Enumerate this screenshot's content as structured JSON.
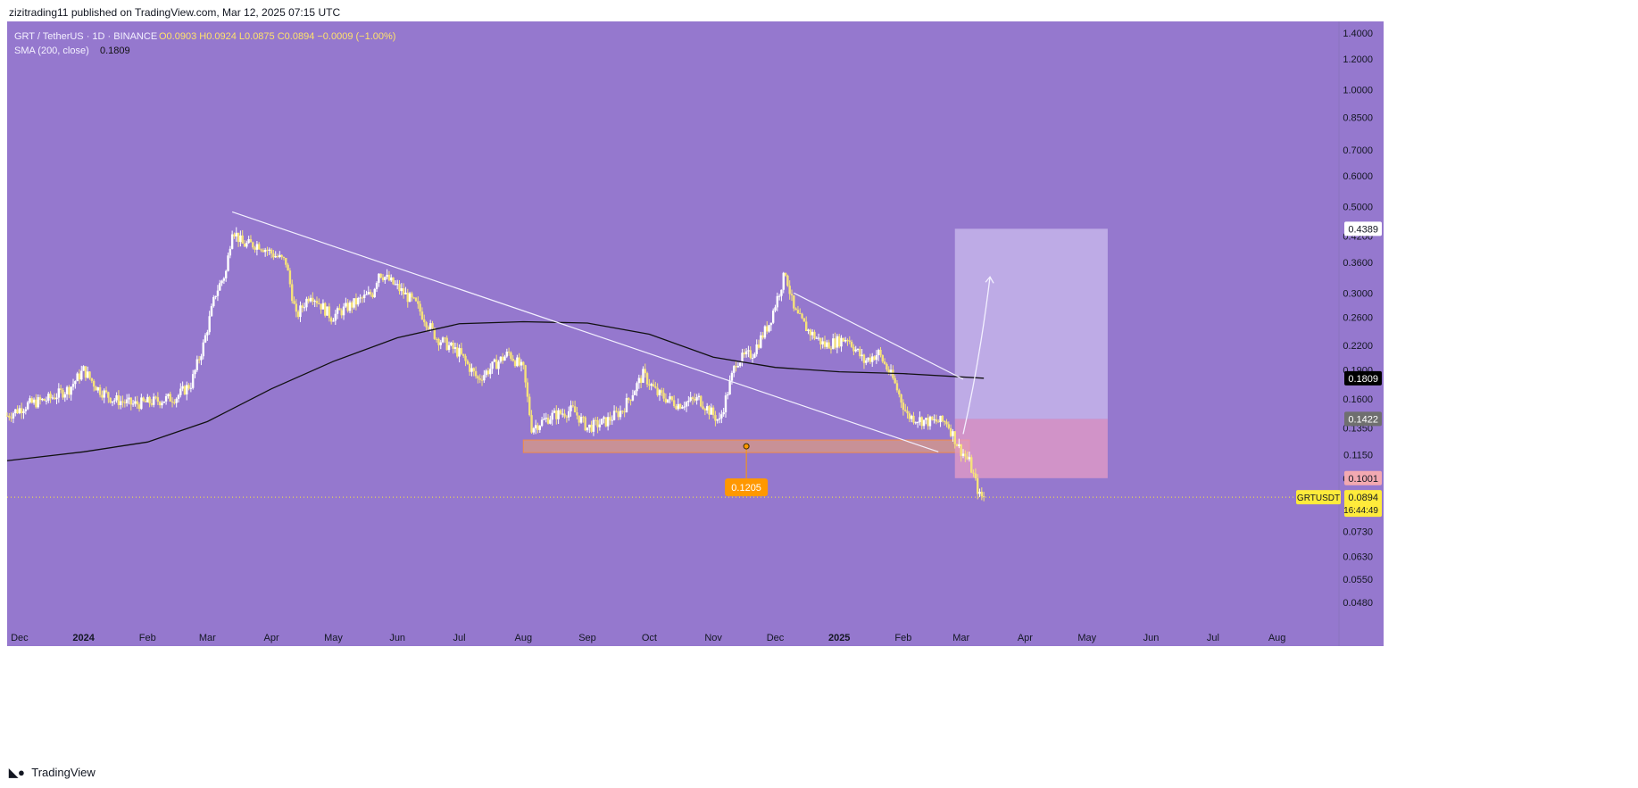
{
  "header": {
    "publish_line": "zizitrading11 published on TradingView.com, Mar 12, 2025 07:15 UTC"
  },
  "legend": {
    "symbol": "GRT / TetherUS · 1D · BINANCE",
    "ohlc": "O0.0903 H0.0924 L0.0875 C0.0894 −0.0009 (−1.00%)",
    "sma_label": "SMA (200, close)",
    "sma_value": "0.1809"
  },
  "footer": {
    "brand": "TradingView",
    "logo": "tradingview-logo-icon"
  },
  "colors": {
    "background": "#9578CE",
    "candle_up": "#FFFFFF",
    "candle_down": "#F6E27A",
    "sma": "#111111",
    "trendline": "#F3F0FF",
    "support_zone": "#F2A56A",
    "target_zone": "#C8B8EC",
    "stop_zone": "#E69CC6",
    "price_tag_last": "#FFEB3B",
    "support_tag": "#FF9800",
    "sma_tag": "#000000",
    "entry_tag": "#6F6F6F",
    "stop_tag": "#F3A9B1",
    "target_tag": "#FFFFFF"
  },
  "price_tags": {
    "target": "0.4389",
    "sma": "0.1809",
    "entry": "0.1422",
    "stop": "0.1001",
    "last_price": "0.0894",
    "countdown": "16:44:49",
    "symbol_tag": "GRTUSDT",
    "support_level": "0.1205"
  },
  "chart_data": {
    "type": "candlestick",
    "symbol": "GRT / TetherUS",
    "interval": "1D",
    "exchange": "BINANCE",
    "y_scale": "log",
    "ylim": [
      0.042,
      1.5
    ],
    "y_ticks": [
      1.4,
      1.2,
      1.0,
      0.85,
      0.7,
      0.6,
      0.5,
      0.42,
      0.36,
      0.3,
      0.26,
      0.22,
      0.19,
      0.16,
      0.135,
      0.115,
      0.1,
      0.073,
      0.063,
      0.055,
      0.048
    ],
    "y_tick_labels": [
      "1.4000",
      "1.2000",
      "1.0000",
      "0.8500",
      "0.7000",
      "0.6000",
      "0.5000",
      "0.4200",
      "0.3600",
      "0.3000",
      "0.2600",
      "0.2200",
      "0.1900",
      "0.1600",
      "0.1350",
      "0.1150",
      "0.1000",
      "0.0730",
      "0.0630",
      "0.0550",
      "0.0480"
    ],
    "x_range": [
      "2023-11-25",
      "2025-08-31"
    ],
    "x_ticks": [
      {
        "label": "Dec",
        "date": "2023-12-01"
      },
      {
        "label": "2024",
        "date": "2024-01-01"
      },
      {
        "label": "Feb",
        "date": "2024-02-01"
      },
      {
        "label": "Mar",
        "date": "2024-03-01"
      },
      {
        "label": "Apr",
        "date": "2024-04-01"
      },
      {
        "label": "May",
        "date": "2024-05-01"
      },
      {
        "label": "Jun",
        "date": "2024-06-01"
      },
      {
        "label": "Jul",
        "date": "2024-07-01"
      },
      {
        "label": "Aug",
        "date": "2024-08-01"
      },
      {
        "label": "Sep",
        "date": "2024-09-01"
      },
      {
        "label": "Oct",
        "date": "2024-10-01"
      },
      {
        "label": "Nov",
        "date": "2024-11-01"
      },
      {
        "label": "Dec",
        "date": "2024-12-01"
      },
      {
        "label": "2025",
        "date": "2025-01-01"
      },
      {
        "label": "Feb",
        "date": "2025-02-01"
      },
      {
        "label": "Mar",
        "date": "2025-03-01"
      },
      {
        "label": "Apr",
        "date": "2025-04-01"
      },
      {
        "label": "May",
        "date": "2025-05-01"
      },
      {
        "label": "Jun",
        "date": "2025-06-01"
      },
      {
        "label": "Jul",
        "date": "2025-07-01"
      },
      {
        "label": "Aug",
        "date": "2025-08-01"
      }
    ],
    "price_path": [
      [
        "2023-11-25",
        0.145
      ],
      [
        "2023-12-05",
        0.155
      ],
      [
        "2023-12-15",
        0.16
      ],
      [
        "2023-12-25",
        0.17
      ],
      [
        "2024-01-01",
        0.19
      ],
      [
        "2024-01-08",
        0.17
      ],
      [
        "2024-01-15",
        0.16
      ],
      [
        "2024-01-25",
        0.155
      ],
      [
        "2024-02-05",
        0.158
      ],
      [
        "2024-02-15",
        0.162
      ],
      [
        "2024-02-22",
        0.175
      ],
      [
        "2024-02-28",
        0.22
      ],
      [
        "2024-03-05",
        0.3
      ],
      [
        "2024-03-10",
        0.34
      ],
      [
        "2024-03-13",
        0.44
      ],
      [
        "2024-03-18",
        0.4
      ],
      [
        "2024-03-26",
        0.4
      ],
      [
        "2024-04-01",
        0.38
      ],
      [
        "2024-04-08",
        0.36
      ],
      [
        "2024-04-13",
        0.26
      ],
      [
        "2024-04-20",
        0.3
      ],
      [
        "2024-04-30",
        0.26
      ],
      [
        "2024-05-10",
        0.28
      ],
      [
        "2024-05-20",
        0.3
      ],
      [
        "2024-05-23",
        0.34
      ],
      [
        "2024-06-01",
        0.31
      ],
      [
        "2024-06-10",
        0.28
      ],
      [
        "2024-06-20",
        0.23
      ],
      [
        "2024-07-01",
        0.21
      ],
      [
        "2024-07-10",
        0.18
      ],
      [
        "2024-07-20",
        0.2
      ],
      [
        "2024-07-25",
        0.21
      ],
      [
        "2024-08-01",
        0.19
      ],
      [
        "2024-08-05",
        0.135
      ],
      [
        "2024-08-15",
        0.145
      ],
      [
        "2024-08-25",
        0.15
      ],
      [
        "2024-09-01",
        0.135
      ],
      [
        "2024-09-10",
        0.14
      ],
      [
        "2024-09-18",
        0.15
      ],
      [
        "2024-09-28",
        0.185
      ],
      [
        "2024-10-05",
        0.165
      ],
      [
        "2024-10-15",
        0.155
      ],
      [
        "2024-10-25",
        0.16
      ],
      [
        "2024-11-04",
        0.14
      ],
      [
        "2024-11-12",
        0.2
      ],
      [
        "2024-11-20",
        0.21
      ],
      [
        "2024-11-28",
        0.25
      ],
      [
        "2024-12-06",
        0.34
      ],
      [
        "2024-12-10",
        0.27
      ],
      [
        "2024-12-17",
        0.24
      ],
      [
        "2024-12-25",
        0.22
      ],
      [
        "2025-01-05",
        0.23
      ],
      [
        "2025-01-13",
        0.2
      ],
      [
        "2025-01-20",
        0.21
      ],
      [
        "2025-01-27",
        0.18
      ],
      [
        "2025-02-03",
        0.145
      ],
      [
        "2025-02-12",
        0.14
      ],
      [
        "2025-02-22",
        0.14
      ],
      [
        "2025-02-28",
        0.12
      ],
      [
        "2025-03-05",
        0.11
      ],
      [
        "2025-03-10",
        0.09
      ],
      [
        "2025-03-12",
        0.0894
      ]
    ],
    "sma_200": [
      [
        "2023-11-25",
        0.111
      ],
      [
        "2024-01-01",
        0.117
      ],
      [
        "2024-02-01",
        0.124
      ],
      [
        "2024-03-01",
        0.14
      ],
      [
        "2024-04-01",
        0.17
      ],
      [
        "2024-05-01",
        0.2
      ],
      [
        "2024-06-01",
        0.23
      ],
      [
        "2024-07-01",
        0.25
      ],
      [
        "2024-08-01",
        0.253
      ],
      [
        "2024-09-01",
        0.251
      ],
      [
        "2024-10-01",
        0.235
      ],
      [
        "2024-11-01",
        0.205
      ],
      [
        "2024-12-01",
        0.193
      ],
      [
        "2025-01-01",
        0.188
      ],
      [
        "2025-02-01",
        0.186
      ],
      [
        "2025-03-12",
        0.181
      ]
    ],
    "current_price": 0.0894,
    "annotations": {
      "descending_trendline_1": [
        [
          "2024-03-13",
          0.485
        ],
        [
          "2025-02-18",
          0.117
        ]
      ],
      "descending_trendline_2": [
        [
          "2024-12-10",
          0.3
        ],
        [
          "2025-03-02",
          0.18
        ]
      ],
      "support_zone": {
        "from": "2024-08-01",
        "to": "2025-03-05",
        "low": 0.1165,
        "high": 0.1255,
        "label": "0.1205"
      },
      "long_position": {
        "from": "2025-02-26",
        "to": "2025-05-11",
        "entry": 0.1422,
        "target": 0.4389,
        "stop": 0.1001
      },
      "projection_arrow": [
        [
          "2025-03-02",
          0.13
        ],
        [
          "2025-03-10",
          0.2
        ],
        [
          "2025-03-15",
          0.33
        ]
      ]
    }
  }
}
